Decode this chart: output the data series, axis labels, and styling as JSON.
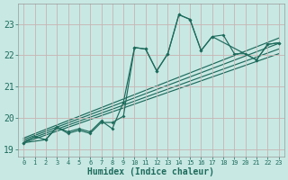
{
  "bg_color": "#c8e8e4",
  "line_color": "#1e6b5c",
  "grid_color": "#b0d4d0",
  "xlabel": "Humidex (Indice chaleur)",
  "xlim": [
    -0.5,
    23.5
  ],
  "ylim": [
    18.75,
    23.65
  ],
  "yticks": [
    19,
    20,
    21,
    22,
    23
  ],
  "xticks": [
    0,
    1,
    2,
    3,
    4,
    5,
    6,
    7,
    8,
    9,
    10,
    11,
    12,
    13,
    14,
    15,
    16,
    17,
    18,
    19,
    20,
    21,
    22,
    23
  ],
  "main_x": [
    0,
    1,
    2,
    3,
    4,
    5,
    6,
    7,
    8,
    9,
    10,
    11,
    12,
    13,
    14,
    15,
    16,
    17,
    18,
    19,
    20,
    21,
    22,
    23
  ],
  "main_y": [
    19.2,
    19.4,
    19.3,
    19.7,
    19.5,
    19.6,
    19.5,
    19.85,
    19.85,
    20.05,
    22.25,
    22.2,
    21.5,
    22.05,
    23.3,
    23.15,
    22.15,
    22.6,
    22.65,
    22.05,
    22.05,
    21.85,
    22.35,
    22.4
  ],
  "line2_x": [
    0,
    2,
    3,
    4,
    5,
    6,
    7,
    8,
    9,
    10,
    11,
    12,
    13,
    14,
    15,
    16,
    17,
    21,
    22,
    23
  ],
  "line2_y": [
    19.2,
    19.3,
    19.7,
    19.55,
    19.65,
    19.55,
    19.9,
    19.65,
    20.5,
    22.25,
    22.2,
    21.5,
    22.05,
    23.3,
    23.15,
    22.15,
    22.6,
    21.85,
    22.35,
    22.4
  ],
  "trend1_x": [
    0,
    23
  ],
  "trend1_y": [
    19.2,
    22.05
  ],
  "trend2_x": [
    0,
    23
  ],
  "trend2_y": [
    19.25,
    22.2
  ],
  "trend3_x": [
    0,
    23
  ],
  "trend3_y": [
    19.3,
    22.38
  ],
  "trend4_x": [
    0,
    23
  ],
  "trend4_y": [
    19.35,
    22.55
  ]
}
